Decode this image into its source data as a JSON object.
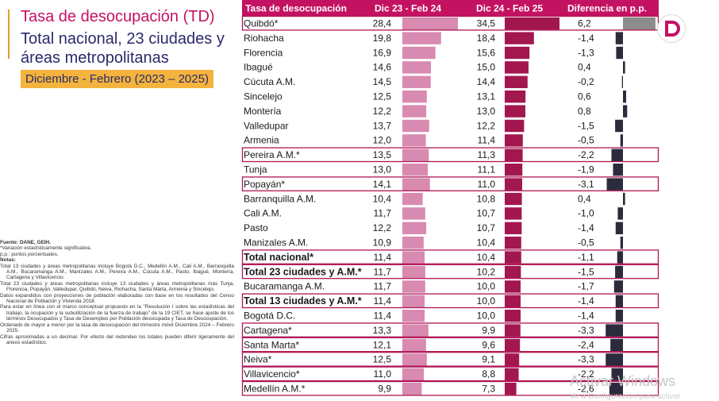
{
  "title": {
    "name": "Tasa de desocupación",
    "abbr": "(TD)",
    "subtitle": "Total nacional, 23 ciudades y áreas metropolitanas",
    "period": "Diciembre - Febrero (2023 – 2025)"
  },
  "chart_data": {
    "type": "table",
    "headers": [
      "Tasa de desocupación",
      "Dic 23 - Feb 24",
      "Dic 24 - Feb 25",
      "Diferencia en p.p."
    ],
    "colors": {
      "header_bg": "#c41262",
      "prev_bar": "#d88ab0",
      "curr_bar": "#a3174f",
      "diff_bar": "#2b2b3d",
      "highlight_border": "#b01556",
      "first_diff_bar": "#8c8c8c"
    },
    "rows": [
      {
        "name": "Quibdó*",
        "prev": "28,4",
        "prev_v": 28.4,
        "curr": "34,5",
        "curr_v": 34.5,
        "diff": "6,2",
        "diff_v": 6.2,
        "bold": false,
        "box": true
      },
      {
        "name": "Riohacha",
        "prev": "19,8",
        "prev_v": 19.8,
        "curr": "18,4",
        "curr_v": 18.4,
        "diff": "-1,4",
        "diff_v": -1.4,
        "bold": false,
        "box": false
      },
      {
        "name": "Florencia",
        "prev": "16,9",
        "prev_v": 16.9,
        "curr": "15,6",
        "curr_v": 15.6,
        "diff": "-1,3",
        "diff_v": -1.3,
        "bold": false,
        "box": false
      },
      {
        "name": "Ibagué",
        "prev": "14,6",
        "prev_v": 14.6,
        "curr": "15,0",
        "curr_v": 15.0,
        "diff": "0,4",
        "diff_v": 0.4,
        "bold": false,
        "box": false
      },
      {
        "name": "Cúcuta A.M.",
        "prev": "14,5",
        "prev_v": 14.5,
        "curr": "14,4",
        "curr_v": 14.4,
        "diff": "-0,2",
        "diff_v": -0.2,
        "bold": false,
        "box": false
      },
      {
        "name": "Sincelejo",
        "prev": "12,5",
        "prev_v": 12.5,
        "curr": "13,1",
        "curr_v": 13.1,
        "diff": "0,6",
        "diff_v": 0.6,
        "bold": false,
        "box": false
      },
      {
        "name": "Montería",
        "prev": "12,2",
        "prev_v": 12.2,
        "curr": "13,0",
        "curr_v": 13.0,
        "diff": "0,8",
        "diff_v": 0.8,
        "bold": false,
        "box": false
      },
      {
        "name": "Valledupar",
        "prev": "13,7",
        "prev_v": 13.7,
        "curr": "12,2",
        "curr_v": 12.2,
        "diff": "-1,5",
        "diff_v": -1.5,
        "bold": false,
        "box": false
      },
      {
        "name": "Armenia",
        "prev": "12,0",
        "prev_v": 12.0,
        "curr": "11,4",
        "curr_v": 11.4,
        "diff": "-0,5",
        "diff_v": -0.5,
        "bold": false,
        "box": false
      },
      {
        "name": "Pereira A.M.*",
        "prev": "13,5",
        "prev_v": 13.5,
        "curr": "11,3",
        "curr_v": 11.3,
        "diff": "-2,2",
        "diff_v": -2.2,
        "bold": false,
        "box": true
      },
      {
        "name": "Tunja",
        "prev": "13,0",
        "prev_v": 13.0,
        "curr": "11,1",
        "curr_v": 11.1,
        "diff": "-1,9",
        "diff_v": -1.9,
        "bold": false,
        "box": false
      },
      {
        "name": "Popayán*",
        "prev": "14,1",
        "prev_v": 14.1,
        "curr": "11,0",
        "curr_v": 11.0,
        "diff": "-3,1",
        "diff_v": -3.1,
        "bold": false,
        "box": true
      },
      {
        "name": "Barranquilla A.M.",
        "prev": "10,4",
        "prev_v": 10.4,
        "curr": "10,8",
        "curr_v": 10.8,
        "diff": "0,4",
        "diff_v": 0.4,
        "bold": false,
        "box": false
      },
      {
        "name": "Cali A.M.",
        "prev": "11,7",
        "prev_v": 11.7,
        "curr": "10,7",
        "curr_v": 10.7,
        "diff": "-1,0",
        "diff_v": -1.0,
        "bold": false,
        "box": false
      },
      {
        "name": "Pasto",
        "prev": "12,2",
        "prev_v": 12.2,
        "curr": "10,7",
        "curr_v": 10.7,
        "diff": "-1,4",
        "diff_v": -1.4,
        "bold": false,
        "box": false
      },
      {
        "name": "Manizales A.M.",
        "prev": "10,9",
        "prev_v": 10.9,
        "curr": "10,4",
        "curr_v": 10.4,
        "diff": "-0,5",
        "diff_v": -0.5,
        "bold": false,
        "box": false
      },
      {
        "name": "Total nacional*",
        "prev": "11,4",
        "prev_v": 11.4,
        "curr": "10,4",
        "curr_v": 10.4,
        "diff": "-1,1",
        "diff_v": -1.1,
        "bold": true,
        "box": true
      },
      {
        "name": "Total 23 ciudades y A.M.*",
        "prev": "11,7",
        "prev_v": 11.7,
        "curr": "10,2",
        "curr_v": 10.2,
        "diff": "-1,5",
        "diff_v": -1.5,
        "bold": true,
        "box": true
      },
      {
        "name": "Bucaramanga A.M.",
        "prev": "11,7",
        "prev_v": 11.7,
        "curr": "10,0",
        "curr_v": 10.0,
        "diff": "-1,7",
        "diff_v": -1.7,
        "bold": false,
        "box": false
      },
      {
        "name": "Total 13 ciudades y A.M.*",
        "prev": "11,4",
        "prev_v": 11.4,
        "curr": "10,0",
        "curr_v": 10.0,
        "diff": "-1,4",
        "diff_v": -1.4,
        "bold": true,
        "box": true
      },
      {
        "name": "Bogotá D.C.",
        "prev": "11,4",
        "prev_v": 11.4,
        "curr": "10,0",
        "curr_v": 10.0,
        "diff": "-1,4",
        "diff_v": -1.4,
        "bold": false,
        "box": false
      },
      {
        "name": "Cartagena*",
        "prev": "13,3",
        "prev_v": 13.3,
        "curr": "9,9",
        "curr_v": 9.9,
        "diff": "-3,3",
        "diff_v": -3.3,
        "bold": false,
        "box": true
      },
      {
        "name": "Santa Marta*",
        "prev": "12,1",
        "prev_v": 12.1,
        "curr": "9,6",
        "curr_v": 9.6,
        "diff": "-2,4",
        "diff_v": -2.4,
        "bold": false,
        "box": true
      },
      {
        "name": "Neiva*",
        "prev": "12,5",
        "prev_v": 12.5,
        "curr": "9,1",
        "curr_v": 9.1,
        "diff": "-3,3",
        "diff_v": -3.3,
        "bold": false,
        "box": true
      },
      {
        "name": "Villavicencio*",
        "prev": "11,0",
        "prev_v": 11.0,
        "curr": "8,8",
        "curr_v": 8.8,
        "diff": "-2,2",
        "diff_v": -2.2,
        "bold": false,
        "box": true
      },
      {
        "name": "Medellín A.M.*",
        "prev": "9,9",
        "prev_v": 9.9,
        "curr": "7,3",
        "curr_v": 7.3,
        "diff": "-2,6",
        "diff_v": -2.6,
        "bold": false,
        "box": true
      }
    ]
  },
  "notes": {
    "source": "Fuente: DANE, GEIH.",
    "sig": "*Variación estadísticamente significativa.",
    "pp": "p.p.: puntos porcentuales.",
    "heading": "Notas:",
    "items": [
      "Total 13 ciudades y áreas metropolitanas incluye Bogotá D.C., Medellín A.M., Cali A.M., Barranquilla A.M., Bucaramanga A.M., Manizales A.M., Pereira A.M., Cúcuta A.M., Pasto, Ibagué, Montería, Cartagena y Villavicencio.",
      "Total 23 ciudades y áreas metropolitanas incluye 13 ciudades y áreas metropolitanas más Tunja, Florencia, Popayán, Valledupar, Quibdó, Neiva, Riohacha, Santa Marta, Armenia y Sincelejo.",
      "Datos expandidos con proyecciones de población elaboradas con base en los resultados del Censo Nacional de Población y Vivienda 2018.",
      "Para estar en línea con el marco conceptual propuesto en la \"Resolución I sobre las estadísticas del trabajo, la ocupación y la subutilización de la fuerza de trabajo\" de la 19 CIET, se hace ajuste de los términos Desocupados y Tasa de Desempleo por Población desocupada y Tasa de Desocupación.",
      "Ordenado de mayor a menor por la tasa de desocupación del trimestre móvil Diciembre 2024 – Febrero 2025.",
      "Cifras aproximadas a un decimal. Por efecto del redondeo los totales pueden diferir ligeramente del anexo estadístico."
    ]
  },
  "watermark": {
    "line1": "Activar Windows",
    "line2": "Ve a Configuración para activar"
  },
  "logo_letter": "D"
}
